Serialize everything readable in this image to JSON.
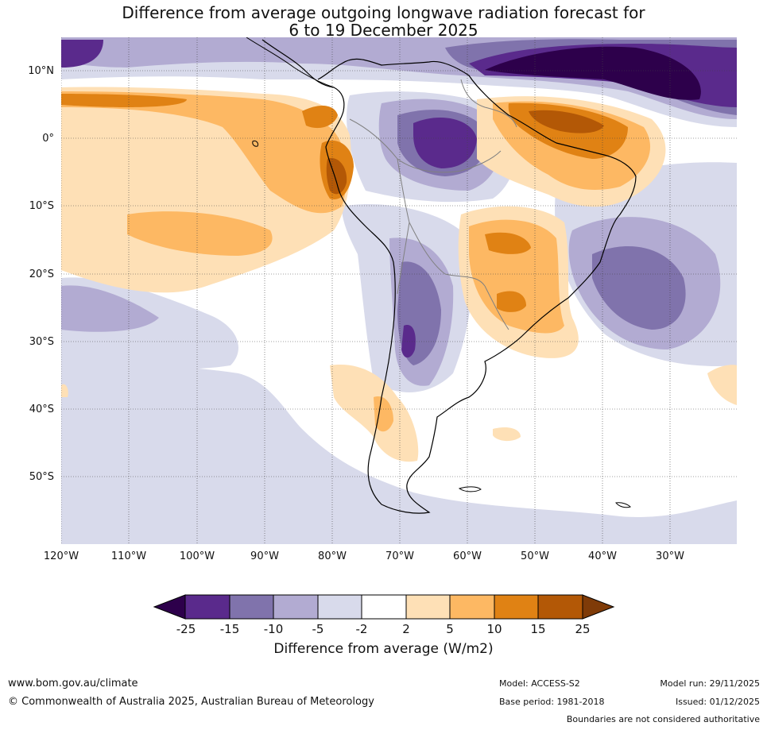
{
  "title": {
    "line1": "Difference from average outgoing longwave radiation forecast for",
    "line2": "6 to 19 December 2025"
  },
  "map": {
    "lat_labels": [
      "10°N",
      "0°",
      "10°S",
      "20°S",
      "30°S",
      "40°S",
      "50°S"
    ],
    "lon_labels": [
      "120°W",
      "110°W",
      "100°W",
      "90°W",
      "80°W",
      "70°W",
      "60°W",
      "50°W",
      "40°W",
      "30°W"
    ]
  },
  "colorbar": {
    "tick_labels": [
      "-25",
      "-15",
      "-10",
      "-5",
      "-2",
      "2",
      "5",
      "10",
      "15",
      "25"
    ],
    "colors": [
      "#2d004b",
      "#5a2a8c",
      "#8073ac",
      "#b2abd2",
      "#d8daeb",
      "#ffffff",
      "#fee0b6",
      "#fdb863",
      "#e08214",
      "#b35806",
      "#7f3b08"
    ],
    "title": "Difference from average (W/m2)"
  },
  "footer": {
    "website": "www.bom.gov.au/climate",
    "copyright": "© Commonwealth of Australia 2025, Australian Bureau of Meteorology",
    "model": "Model: ACCESS-S2",
    "base_period": "Base period: 1981-2018",
    "model_run": "Model run: 29/11/2025",
    "issued": "Issued: 01/12/2025",
    "disclaimer": "Boundaries are not considered authoritative"
  }
}
